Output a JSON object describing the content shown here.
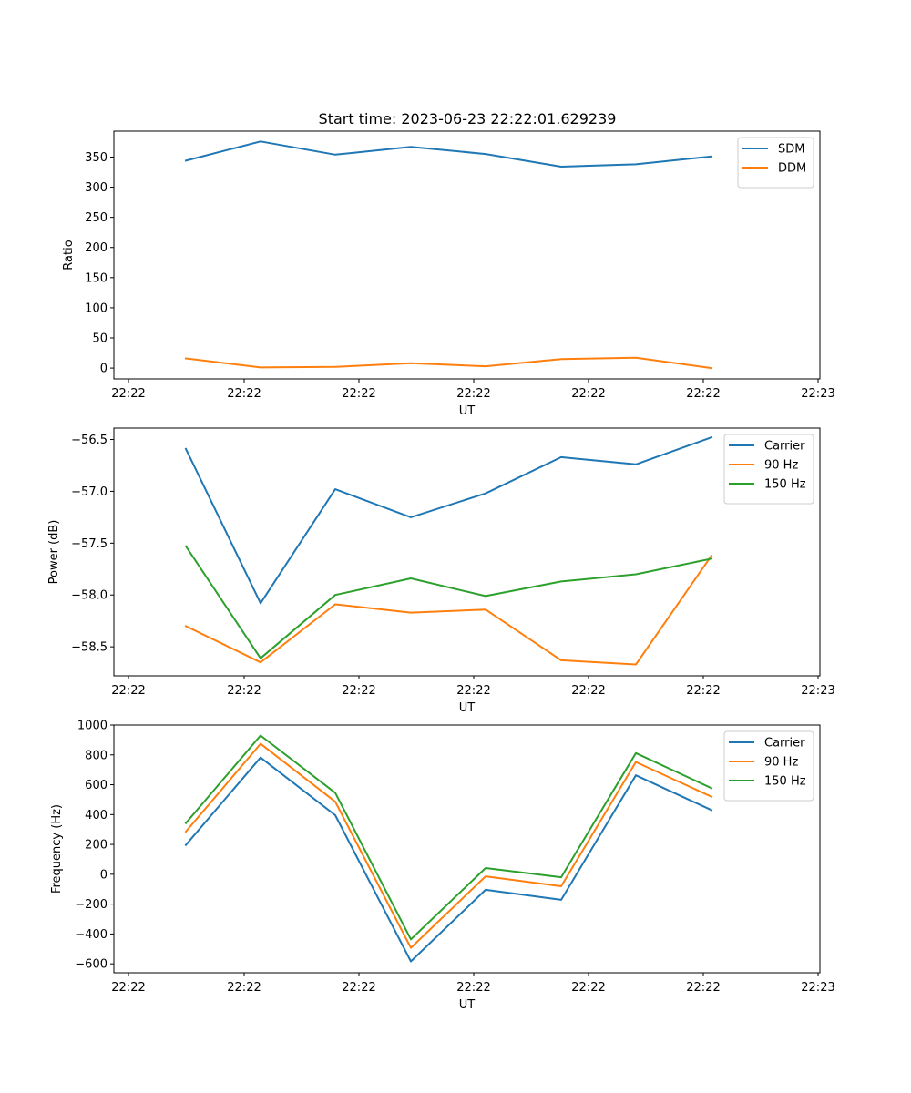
{
  "figure": {
    "title": "Start time: 2023-06-23 22:22:01.629239"
  },
  "colors": {
    "blue": "#1f77b4",
    "orange": "#ff7f0e",
    "green": "#2ca02c"
  },
  "chart_data": [
    {
      "type": "line",
      "title": "Start time: 2023-06-23 22:22:01.629239",
      "xlabel": "UT",
      "ylabel": "Ratio",
      "x_tick_labels": [
        "22:22",
        "22:22",
        "22:22",
        "22:22",
        "22:22",
        "22:22",
        "22:23"
      ],
      "ylim": [
        -18,
        393
      ],
      "y_ticks": [
        0,
        50,
        100,
        150,
        200,
        250,
        300,
        350
      ],
      "grid": false,
      "legend": "top-right",
      "series": [
        {
          "name": "SDM",
          "color": "#1f77b4",
          "values": [
            344,
            376,
            354,
            367,
            355,
            334,
            338,
            351
          ]
        },
        {
          "name": "DDM",
          "color": "#ff7f0e",
          "values": [
            16,
            1,
            2,
            8,
            3,
            15,
            17,
            0
          ]
        }
      ]
    },
    {
      "type": "line",
      "xlabel": "UT",
      "ylabel": "Power (dB)",
      "x_tick_labels": [
        "22:22",
        "22:22",
        "22:22",
        "22:22",
        "22:22",
        "22:22",
        "22:23"
      ],
      "ylim": [
        -58.78,
        -56.39
      ],
      "y_ticks": [
        -58.5,
        -58.0,
        -57.5,
        -57.0,
        -56.5
      ],
      "grid": false,
      "legend": "top-right",
      "series": [
        {
          "name": "Carrier",
          "color": "#1f77b4",
          "values": [
            -56.59,
            -58.08,
            -56.98,
            -57.25,
            -57.02,
            -56.67,
            -56.74,
            -56.48
          ]
        },
        {
          "name": "90 Hz",
          "color": "#ff7f0e",
          "values": [
            -58.3,
            -58.65,
            -58.09,
            -58.17,
            -58.14,
            -58.63,
            -58.67,
            -57.62
          ]
        },
        {
          "name": "150 Hz",
          "color": "#2ca02c",
          "values": [
            -57.53,
            -58.61,
            -58.0,
            -57.84,
            -58.01,
            -57.87,
            -57.8,
            -57.65
          ]
        }
      ]
    },
    {
      "type": "line",
      "xlabel": "UT",
      "ylabel": "Frequency (Hz)",
      "x_tick_labels": [
        "22:22",
        "22:22",
        "22:22",
        "22:22",
        "22:22",
        "22:22",
        "22:23"
      ],
      "ylim": [
        -660,
        1000
      ],
      "y_ticks": [
        -600,
        -400,
        -200,
        0,
        200,
        400,
        600,
        800,
        1000
      ],
      "grid": false,
      "legend": "top-right",
      "series": [
        {
          "name": "Carrier",
          "color": "#1f77b4",
          "values": [
            196,
            782,
            396,
            -584,
            -104,
            -171,
            663,
            430
          ]
        },
        {
          "name": "90 Hz",
          "color": "#ff7f0e",
          "values": [
            286,
            874,
            486,
            -493,
            -14,
            -80,
            752,
            520
          ]
        },
        {
          "name": "150 Hz",
          "color": "#2ca02c",
          "values": [
            343,
            930,
            546,
            -436,
            42,
            -20,
            812,
            577
          ]
        }
      ]
    }
  ]
}
